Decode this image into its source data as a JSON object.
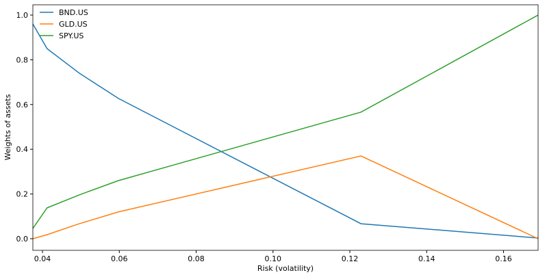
{
  "chart_data": {
    "type": "line",
    "x_label": "Risk (volatility)",
    "y_label": "Weights of assets",
    "x": [
      0.0375,
      0.0412,
      0.0496,
      0.0598,
      0.1229,
      0.169
    ],
    "series": [
      {
        "name": "BND.US",
        "color": "#1f77b4",
        "values": [
          0.96,
          0.85,
          0.74,
          0.627,
          0.067,
          0.003
        ]
      },
      {
        "name": "GLD.US",
        "color": "#ff7f0e",
        "values": [
          0.0,
          0.018,
          0.067,
          0.12,
          0.37,
          0.0
        ]
      },
      {
        "name": "SPY.US",
        "color": "#2ca02c",
        "values": [
          0.046,
          0.138,
          0.196,
          0.26,
          0.566,
          1.0
        ]
      }
    ],
    "xlim": [
      0.0375,
      0.169
    ],
    "ylim": [
      -0.052,
      1.046
    ],
    "xticks": [
      0.04,
      0.06,
      0.08,
      {
        "value": 0.1,
        "label": "0.10"
      },
      0.12,
      0.14,
      0.16
    ],
    "yticks": [
      {
        "value": 0,
        "label": "0.0"
      },
      0.2,
      0.4,
      0.6,
      0.8,
      {
        "value": 1,
        "label": "1.0"
      }
    ],
    "legend": "upper-left"
  }
}
